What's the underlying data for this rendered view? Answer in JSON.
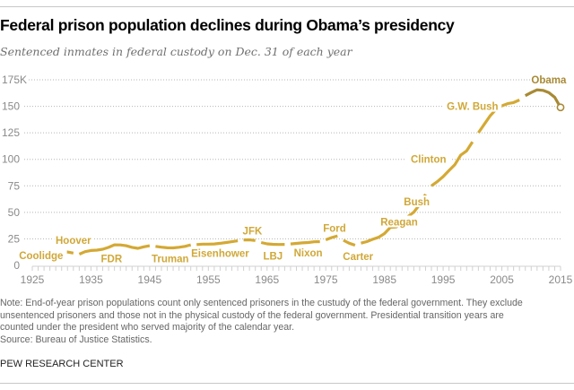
{
  "header": {
    "title": "Federal prison population declines during Obama’s presidency",
    "subtitle": "Sentenced inmates in federal custody on Dec. 31 of each year"
  },
  "footer": {
    "note_lines": [
      "Note: End-of-year prison populations count only sentenced prisoners in the custudy of the federal government. They exclude",
      "unsentenced prisoners and those not in the physical custody of the federal government. Presidential transition years are",
      "counted under the president who served majority of the calendar year."
    ],
    "source": "Source: Bureau of Justice Statistics.",
    "brand": "PEW RESEARCH CENTER"
  },
  "colors": {
    "line": "#d4a934",
    "obama_line": "#a88a35",
    "grid": "#b5b5b5",
    "tick_text": "#8a8a8a"
  },
  "chart_data": {
    "type": "line",
    "title": "Federal prison population declines during Obama’s presidency",
    "subtitle": "Sentenced inmates in federal custody on Dec. 31 of each year",
    "xlabel": "",
    "ylabel": "",
    "xlim": [
      1925,
      2015
    ],
    "ylim": [
      0,
      175
    ],
    "x_ticks": [
      1925,
      1935,
      1945,
      1955,
      1965,
      1975,
      1985,
      1995,
      2005,
      2015
    ],
    "y_ticks": [
      0,
      25,
      50,
      75,
      100,
      125,
      150,
      175
    ],
    "y_tick_labels": [
      "0",
      "25",
      "50",
      "75",
      "100",
      "125",
      "150",
      "175K"
    ],
    "grid": "horizontal-dotted",
    "units": "thousands of inmates",
    "series": [
      {
        "name": "Coolidge",
        "x": [
          1925,
          1926,
          1927,
          1928
        ],
        "values": [
          6.1,
          6.6,
          7.1,
          7.9
        ]
      },
      {
        "name": "Hoover",
        "x": [
          1929,
          1930,
          1931,
          1932
        ],
        "values": [
          12.0,
          12.4,
          12.6,
          11.6
        ]
      },
      {
        "name": "FDR",
        "x": [
          1933,
          1934,
          1935,
          1936,
          1937,
          1938,
          1939,
          1940,
          1941,
          1942,
          1943,
          1944,
          1945
        ],
        "values": [
          10.6,
          12.9,
          14.0,
          14.4,
          15.2,
          17.0,
          19.4,
          19.3,
          18.5,
          17.0,
          16.1,
          17.5,
          18.5
        ]
      },
      {
        "name": "Truman",
        "x": [
          1946,
          1947,
          1948,
          1949,
          1950,
          1951,
          1952
        ],
        "values": [
          17.9,
          17.2,
          16.6,
          16.5,
          17.1,
          17.9,
          19.3
        ]
      },
      {
        "name": "Eisenhower",
        "x": [
          1953,
          1954,
          1955,
          1956,
          1957,
          1958,
          1959,
          1960
        ],
        "values": [
          19.6,
          20.0,
          20.0,
          20.2,
          20.8,
          21.6,
          22.3,
          23.2
        ]
      },
      {
        "name": "JFK",
        "x": [
          1961,
          1962,
          1963
        ],
        "values": [
          24.0,
          24.1,
          23.4
        ]
      },
      {
        "name": "LBJ",
        "x": [
          1964,
          1965,
          1966,
          1967,
          1968
        ],
        "values": [
          21.6,
          20.3,
          19.9,
          19.7,
          19.8
        ]
      },
      {
        "name": "Nixon",
        "x": [
          1969,
          1970,
          1971,
          1972,
          1973,
          1974
        ],
        "values": [
          20.2,
          20.7,
          21.2,
          21.6,
          22.2,
          22.4
        ]
      },
      {
        "name": "Ford",
        "x": [
          1975,
          1976,
          1977
        ],
        "values": [
          24.1,
          26.2,
          27.8
        ]
      },
      {
        "name": "Carter",
        "x": [
          1978,
          1979,
          1980
        ],
        "values": [
          23.7,
          20.9,
          19.0
        ]
      },
      {
        "name": "Reagan",
        "x": [
          1981,
          1982,
          1983,
          1984,
          1985,
          1986,
          1987,
          1988
        ],
        "values": [
          21.0,
          22.4,
          24.6,
          26.5,
          30.0,
          35.8,
          36.2,
          39.8
        ]
      },
      {
        "name": "Bush",
        "x": [
          1989,
          1990,
          1991,
          1992
        ],
        "values": [
          46.0,
          50.2,
          57.3,
          67.0
        ]
      },
      {
        "name": "Clinton",
        "x": [
          1993,
          1994,
          1995,
          1996,
          1997,
          1998,
          1999,
          2000
        ],
        "values": [
          75.0,
          79.0,
          83.7,
          89.5,
          95.0,
          104.0,
          108.0,
          116.5
        ]
      },
      {
        "name": "G.W. Bush",
        "x": [
          2001,
          2002,
          2003,
          2004,
          2005,
          2006,
          2007,
          2008
        ],
        "values": [
          125.0,
          133.0,
          141.0,
          147.0,
          150.5,
          152.5,
          153.5,
          156.0
        ]
      },
      {
        "name": "Obama",
        "x": [
          2009,
          2010,
          2011,
          2012,
          2013,
          2014,
          2015
        ],
        "values": [
          160.0,
          163.0,
          165.5,
          165.0,
          163.0,
          158.5,
          149.0
        ]
      }
    ],
    "annotations": [
      {
        "text": "Coolidge",
        "year": 1926.5,
        "value": 9.5
      },
      {
        "text": "Hoover",
        "year": 1932.0,
        "value": 23.5
      },
      {
        "text": "FDR",
        "year": 1938.5,
        "value": 6.2
      },
      {
        "text": "Truman",
        "year": 1948.5,
        "value": 6.2
      },
      {
        "text": "Eisenhower",
        "year": 1957.0,
        "value": 11.5
      },
      {
        "text": "JFK",
        "year": 1962.5,
        "value": 32.5
      },
      {
        "text": "LBJ",
        "year": 1966.0,
        "value": 9.0
      },
      {
        "text": "Nixon",
        "year": 1972.0,
        "value": 12.0
      },
      {
        "text": "Ford",
        "year": 1976.5,
        "value": 35.0
      },
      {
        "text": "Carter",
        "year": 1980.5,
        "value": 8.5
      },
      {
        "text": "Reagan",
        "year": 1987.5,
        "value": 41.0
      },
      {
        "text": "Bush",
        "year": 1990.5,
        "value": 60.0
      },
      {
        "text": "Clinton",
        "year": 1992.5,
        "value": 100.0
      },
      {
        "text": "G.W. Bush",
        "year": 2000.0,
        "value": 150.0
      },
      {
        "text": "Obama",
        "year": 2013.0,
        "value": 175.0
      }
    ]
  }
}
